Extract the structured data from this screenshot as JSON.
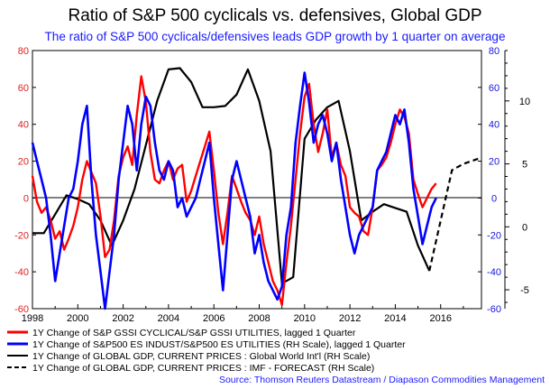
{
  "chart_data": {
    "type": "line",
    "title": "Ratio of S&P 500 cyclicals vs. defensives, Global GDP",
    "subtitle": "The ratio of S&P 500 cyclicals/defensives leads GDP growth by 1 quarter on average",
    "source": "Source: Thomson Reuters Datastream / Diapason Commodities Management",
    "x_ticks": [
      "1998",
      "2000",
      "2002",
      "2004",
      "2006",
      "2008",
      "2010",
      "2012",
      "2014",
      "2016"
    ],
    "xlim": [
      1998,
      2017.8
    ],
    "left_axis": {
      "ticks": [
        "80",
        "60",
        "40",
        "20",
        "0",
        "-20",
        "-40",
        "-60"
      ],
      "ylim": [
        -60,
        80
      ],
      "color": "#e02020"
    },
    "right_axis_1": {
      "ticks": [
        "80",
        "60",
        "40",
        "20",
        "0",
        "-20",
        "-40",
        "-60"
      ],
      "ylim": [
        -60,
        80
      ],
      "color": "#1515e0"
    },
    "right_axis_2": {
      "ticks": [
        "10",
        "5",
        "0",
        "-5"
      ],
      "ylim": [
        -6.5,
        14
      ],
      "color": "#000000"
    },
    "grid": false,
    "legend_position": "bottom-left",
    "series": [
      {
        "name": "1Y Change of S&P GSSI CYCLICAL/S&P GSSI UTILITIES, lagged 1 Quarter",
        "color": "#ff0000",
        "axis": "left",
        "dash": false,
        "x": [
          1998.0,
          1998.2,
          1998.4,
          1998.6,
          1998.8,
          1999.0,
          1999.2,
          1999.4,
          1999.6,
          1999.8,
          2000.0,
          2000.2,
          2000.4,
          2000.6,
          2000.8,
          2001.0,
          2001.2,
          2001.4,
          2001.6,
          2001.8,
          2002.0,
          2002.2,
          2002.4,
          2002.6,
          2002.8,
          2003.0,
          2003.2,
          2003.4,
          2003.6,
          2003.8,
          2004.0,
          2004.2,
          2004.4,
          2004.6,
          2004.8,
          2005.0,
          2005.2,
          2005.4,
          2005.6,
          2005.8,
          2006.0,
          2006.2,
          2006.4,
          2006.6,
          2006.8,
          2007.0,
          2007.2,
          2007.4,
          2007.6,
          2007.8,
          2008.0,
          2008.2,
          2008.4,
          2008.6,
          2008.8,
          2009.0,
          2009.2,
          2009.4,
          2009.6,
          2009.8,
          2010.0,
          2010.2,
          2010.4,
          2010.6,
          2010.8,
          2011.0,
          2011.2,
          2011.4,
          2011.6,
          2011.8,
          2012.0,
          2012.2,
          2012.4,
          2012.6,
          2012.8,
          2013.0,
          2013.2,
          2013.4,
          2013.6,
          2013.8,
          2014.0,
          2014.2,
          2014.4,
          2014.6,
          2014.8,
          2015.0,
          2015.2,
          2015.4,
          2015.6,
          2015.8
        ],
        "y": [
          12,
          -2,
          -8,
          -5,
          -12,
          -22,
          -18,
          -28,
          -22,
          -15,
          -5,
          10,
          20,
          14,
          8,
          -10,
          -32,
          -28,
          -12,
          12,
          22,
          28,
          18,
          45,
          66,
          52,
          25,
          10,
          8,
          15,
          20,
          10,
          16,
          18,
          -2,
          4,
          12,
          20,
          28,
          36,
          15,
          -8,
          -25,
          -8,
          12,
          5,
          -2,
          -8,
          -12,
          -20,
          -10,
          -25,
          -35,
          -45,
          -50,
          -58,
          -35,
          -15,
          10,
          35,
          55,
          62,
          40,
          25,
          35,
          48,
          22,
          30,
          18,
          12,
          -5,
          -8,
          -10,
          -18,
          -20,
          -5,
          15,
          18,
          22,
          30,
          40,
          48,
          44,
          35,
          10,
          2,
          -5,
          0,
          5,
          8
        ]
      },
      {
        "name": "1Y Change of S&P500 ES INDUST/S&P500 ES UTILITIES (RH Scale), lagged 1 Quarter",
        "color": "#0000ff",
        "axis": "right",
        "dash": false,
        "x": [
          1998.0,
          1998.2,
          1998.4,
          1998.6,
          1998.8,
          1999.0,
          1999.2,
          1999.4,
          1999.6,
          1999.8,
          2000.0,
          2000.2,
          2000.4,
          2000.6,
          2000.8,
          2001.0,
          2001.2,
          2001.4,
          2001.6,
          2001.8,
          2002.0,
          2002.2,
          2002.4,
          2002.6,
          2002.8,
          2003.0,
          2003.2,
          2003.4,
          2003.6,
          2003.8,
          2004.0,
          2004.2,
          2004.4,
          2004.6,
          2004.8,
          2005.0,
          2005.2,
          2005.4,
          2005.6,
          2005.8,
          2006.0,
          2006.2,
          2006.4,
          2006.6,
          2006.8,
          2007.0,
          2007.2,
          2007.4,
          2007.6,
          2007.8,
          2008.0,
          2008.2,
          2008.4,
          2008.6,
          2008.8,
          2009.0,
          2009.2,
          2009.4,
          2009.6,
          2009.8,
          2010.0,
          2010.2,
          2010.4,
          2010.6,
          2010.8,
          2011.0,
          2011.2,
          2011.4,
          2011.6,
          2011.8,
          2012.0,
          2012.2,
          2012.4,
          2012.6,
          2012.8,
          2013.0,
          2013.2,
          2013.4,
          2013.6,
          2013.8,
          2014.0,
          2014.2,
          2014.4,
          2014.6,
          2014.8,
          2015.0,
          2015.2,
          2015.4,
          2015.6,
          2015.8
        ],
        "y": [
          30,
          20,
          10,
          0,
          -20,
          -45,
          -30,
          -15,
          0,
          5,
          20,
          40,
          50,
          10,
          -20,
          -40,
          -60,
          -40,
          -20,
          10,
          30,
          50,
          40,
          15,
          40,
          55,
          50,
          30,
          15,
          10,
          20,
          15,
          -5,
          0,
          -10,
          -5,
          0,
          10,
          20,
          30,
          0,
          -25,
          -50,
          -20,
          10,
          20,
          10,
          0,
          -10,
          -30,
          -20,
          -35,
          -45,
          -50,
          -55,
          -48,
          -20,
          -5,
          30,
          50,
          68,
          52,
          30,
          40,
          45,
          35,
          20,
          30,
          10,
          -5,
          -20,
          -30,
          -20,
          -15,
          -10,
          -5,
          15,
          20,
          25,
          35,
          45,
          40,
          48,
          30,
          5,
          -10,
          -25,
          -15,
          -5,
          0
        ]
      },
      {
        "name": "1Y Change of GLOBAL GDP, CURRENT PRICES : Global World Int'l (RH Scale)",
        "color": "#000000",
        "axis": "right2",
        "dash": false,
        "x": [
          1998.0,
          1998.5,
          1999.0,
          1999.5,
          2000.0,
          2000.5,
          2001.0,
          2001.5,
          2002.0,
          2002.5,
          2003.0,
          2003.5,
          2004.0,
          2004.5,
          2005.0,
          2005.5,
          2006.0,
          2006.5,
          2007.0,
          2007.5,
          2008.0,
          2008.5,
          2009.0,
          2009.5,
          2010.0,
          2010.5,
          2011.0,
          2011.5,
          2012.0,
          2012.5,
          2013.0,
          2013.5,
          2014.0,
          2014.5,
          2015.0,
          2015.5
        ],
        "y": [
          -0.5,
          -0.5,
          1.0,
          2.5,
          2.2,
          1.8,
          0.5,
          -1.5,
          0.5,
          3.0,
          6.5,
          10.0,
          12.5,
          12.6,
          11.5,
          9.5,
          9.5,
          9.6,
          10.5,
          12.5,
          10.0,
          6.0,
          -4.5,
          -4.0,
          7.0,
          8.5,
          9.5,
          10.0,
          6.0,
          0.5,
          1.2,
          1.8,
          1.5,
          1.2,
          -1.5,
          -3.5
        ]
      },
      {
        "name": "1Y Change of GLOBAL GDP, CURRENT PRICES : IMF - FORECAST (RH Scale)",
        "color": "#000000",
        "axis": "right2",
        "dash": true,
        "x": [
          2015.5,
          2016.5,
          2017.0,
          2017.8
        ],
        "y": [
          -3.5,
          4.5,
          5.0,
          5.5
        ]
      }
    ]
  }
}
